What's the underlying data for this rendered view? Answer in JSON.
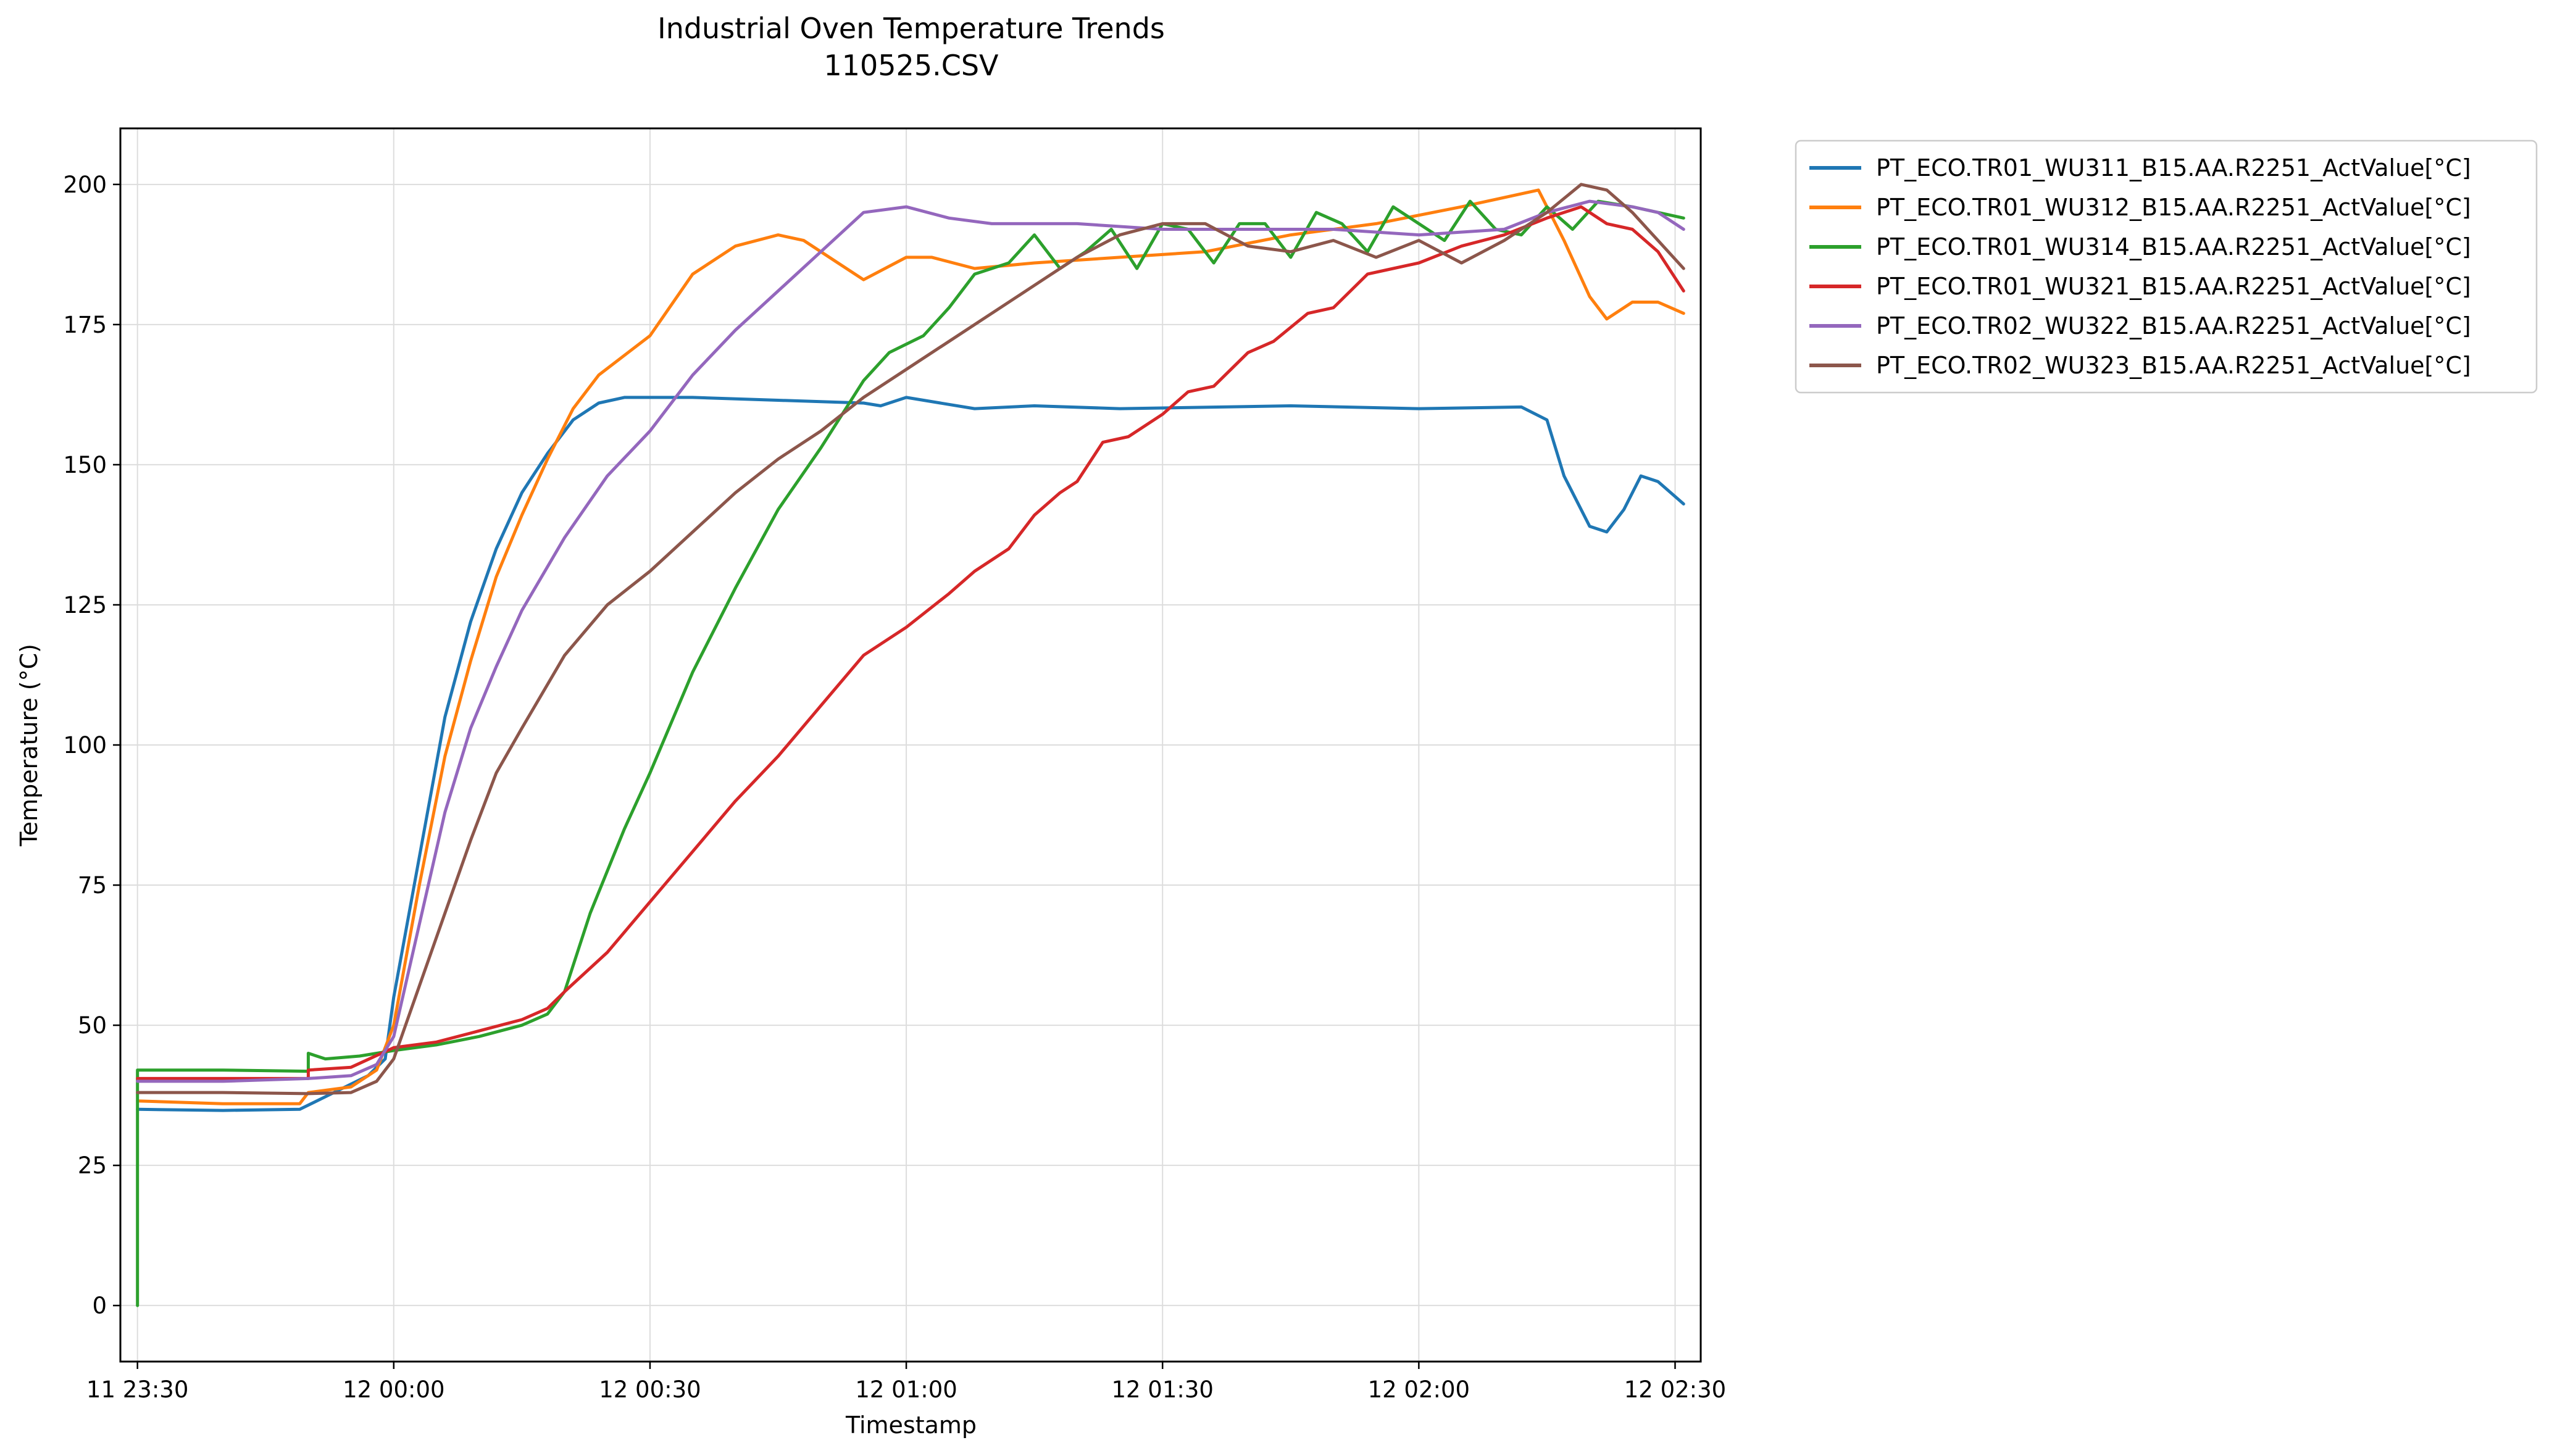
{
  "chart_data": {
    "type": "line",
    "title": "Industrial Oven Temperature Trends",
    "subtitle": "110525.CSV",
    "xlabel": "Timestamp",
    "ylabel": "Temperature (°C)",
    "xlim": [
      "11 23:28",
      "12 02:33"
    ],
    "ylim": [
      -10,
      210
    ],
    "grid": true,
    "legend_position": "outside-top-right",
    "yticks": [
      0,
      25,
      50,
      75,
      100,
      125,
      150,
      175,
      200
    ],
    "xticks": [
      {
        "t": "11 23:30",
        "label": "11 23:30"
      },
      {
        "t": "12 00:00",
        "label": "12 00:00"
      },
      {
        "t": "12 00:30",
        "label": "12 00:30"
      },
      {
        "t": "12 01:00",
        "label": "12 01:00"
      },
      {
        "t": "12 01:30",
        "label": "12 01:30"
      },
      {
        "t": "12 02:00",
        "label": "12 02:00"
      },
      {
        "t": "12 02:30",
        "label": "12 02:30"
      }
    ],
    "series": [
      {
        "name": "PT_ECO.TR01_WU311_B15.AA.R2251_ActValue[°C]",
        "color": "#1f77b4",
        "points": [
          [
            "11 23:30",
            35
          ],
          [
            "11 23:40",
            34.8
          ],
          [
            "11 23:49",
            35
          ],
          [
            "11 23:53",
            38
          ],
          [
            "11 23:57",
            41
          ],
          [
            "11 23:59",
            44
          ],
          [
            "12 00:00",
            55
          ],
          [
            "12 00:03",
            80
          ],
          [
            "12 00:06",
            105
          ],
          [
            "12 00:09",
            122
          ],
          [
            "12 00:12",
            135
          ],
          [
            "12 00:15",
            145
          ],
          [
            "12 00:18",
            152
          ],
          [
            "12 00:21",
            158
          ],
          [
            "12 00:24",
            161
          ],
          [
            "12 00:27",
            162
          ],
          [
            "12 00:35",
            162
          ],
          [
            "12 00:45",
            161.5
          ],
          [
            "12 00:55",
            161
          ],
          [
            "12 00:57",
            160.5
          ],
          [
            "12 01:00",
            162
          ],
          [
            "12 01:04",
            161
          ],
          [
            "12 01:08",
            160
          ],
          [
            "12 01:15",
            160.5
          ],
          [
            "12 01:25",
            160
          ],
          [
            "12 01:45",
            160.5
          ],
          [
            "12 02:00",
            160
          ],
          [
            "12 02:12",
            160.3
          ],
          [
            "12 02:15",
            158
          ],
          [
            "12 02:17",
            148
          ],
          [
            "12 02:20",
            139
          ],
          [
            "12 02:22",
            138
          ],
          [
            "12 02:24",
            142
          ],
          [
            "12 02:26",
            148
          ],
          [
            "12 02:28",
            147
          ],
          [
            "12 02:31",
            143
          ]
        ]
      },
      {
        "name": "PT_ECO.TR01_WU312_B15.AA.R2251_ActValue[°C]",
        "color": "#ff7f0e",
        "points": [
          [
            "11 23:30",
            36.5
          ],
          [
            "11 23:40",
            36
          ],
          [
            "11 23:49",
            36
          ],
          [
            "11 23:50",
            38
          ],
          [
            "11 23:55",
            39
          ],
          [
            "11 23:58",
            42
          ],
          [
            "12 00:00",
            50
          ],
          [
            "12 00:03",
            75
          ],
          [
            "12 00:06",
            98
          ],
          [
            "12 00:09",
            115
          ],
          [
            "12 00:12",
            130
          ],
          [
            "12 00:15",
            141
          ],
          [
            "12 00:18",
            151
          ],
          [
            "12 00:21",
            160
          ],
          [
            "12 00:24",
            166
          ],
          [
            "12 00:30",
            173
          ],
          [
            "12 00:35",
            184
          ],
          [
            "12 00:40",
            189
          ],
          [
            "12 00:45",
            191
          ],
          [
            "12 00:48",
            190
          ],
          [
            "12 00:52",
            186
          ],
          [
            "12 00:55",
            183
          ],
          [
            "12 01:00",
            187
          ],
          [
            "12 01:03",
            187
          ],
          [
            "12 01:08",
            185
          ],
          [
            "12 01:15",
            186
          ],
          [
            "12 01:25",
            187
          ],
          [
            "12 01:35",
            188
          ],
          [
            "12 01:45",
            191
          ],
          [
            "12 01:55",
            193
          ],
          [
            "12 02:05",
            196
          ],
          [
            "12 02:14",
            199
          ],
          [
            "12 02:17",
            190
          ],
          [
            "12 02:20",
            180
          ],
          [
            "12 02:22",
            176
          ],
          [
            "12 02:25",
            179
          ],
          [
            "12 02:28",
            179
          ],
          [
            "12 02:31",
            177
          ]
        ]
      },
      {
        "name": "PT_ECO.TR01_WU314_B15.AA.R2251_ActValue[°C]",
        "color": "#2ca02c",
        "points": [
          [
            "11 23:30",
            0
          ],
          [
            "11 23:30",
            42
          ],
          [
            "11 23:40",
            42
          ],
          [
            "11 23:50",
            41.8
          ],
          [
            "11 23:50",
            45
          ],
          [
            "11 23:52",
            44
          ],
          [
            "11 23:56",
            44.5
          ],
          [
            "12 00:00",
            45.5
          ],
          [
            "12 00:05",
            46.5
          ],
          [
            "12 00:10",
            48
          ],
          [
            "12 00:15",
            50
          ],
          [
            "12 00:18",
            52
          ],
          [
            "12 00:20",
            56
          ],
          [
            "12 00:23",
            70
          ],
          [
            "12 00:27",
            85
          ],
          [
            "12 00:30",
            95
          ],
          [
            "12 00:35",
            113
          ],
          [
            "12 00:40",
            128
          ],
          [
            "12 00:45",
            142
          ],
          [
            "12 00:50",
            153
          ],
          [
            "12 00:55",
            165
          ],
          [
            "12 00:58",
            170
          ],
          [
            "12 01:02",
            173
          ],
          [
            "12 01:05",
            178
          ],
          [
            "12 01:08",
            184
          ],
          [
            "12 01:12",
            186
          ],
          [
            "12 01:15",
            191
          ],
          [
            "12 01:18",
            185
          ],
          [
            "12 01:21",
            188
          ],
          [
            "12 01:24",
            192
          ],
          [
            "12 01:27",
            185
          ],
          [
            "12 01:30",
            193
          ],
          [
            "12 01:33",
            192
          ],
          [
            "12 01:36",
            186
          ],
          [
            "12 01:39",
            193
          ],
          [
            "12 01:42",
            193
          ],
          [
            "12 01:45",
            187
          ],
          [
            "12 01:48",
            195
          ],
          [
            "12 01:51",
            193
          ],
          [
            "12 01:54",
            188
          ],
          [
            "12 01:57",
            196
          ],
          [
            "12 02:00",
            193
          ],
          [
            "12 02:03",
            190
          ],
          [
            "12 02:06",
            197
          ],
          [
            "12 02:09",
            192
          ],
          [
            "12 02:12",
            191
          ],
          [
            "12 02:15",
            196
          ],
          [
            "12 02:18",
            192
          ],
          [
            "12 02:21",
            197
          ],
          [
            "12 02:25",
            196
          ],
          [
            "12 02:31",
            194
          ]
        ]
      },
      {
        "name": "PT_ECO.TR01_WU321_B15.AA.R2251_ActValue[°C]",
        "color": "#d62728",
        "points": [
          [
            "11 23:30",
            40.5
          ],
          [
            "11 23:40",
            40.5
          ],
          [
            "11 23:50",
            40.5
          ],
          [
            "11 23:50",
            42
          ],
          [
            "11 23:55",
            42.5
          ],
          [
            "12 00:00",
            46
          ],
          [
            "12 00:05",
            47
          ],
          [
            "12 00:10",
            49
          ],
          [
            "12 00:15",
            51
          ],
          [
            "12 00:18",
            53
          ],
          [
            "12 00:20",
            56
          ],
          [
            "12 00:25",
            63
          ],
          [
            "12 00:30",
            72
          ],
          [
            "12 00:35",
            81
          ],
          [
            "12 00:40",
            90
          ],
          [
            "12 00:45",
            98
          ],
          [
            "12 00:50",
            107
          ],
          [
            "12 00:55",
            116
          ],
          [
            "12 01:00",
            121
          ],
          [
            "12 01:05",
            127
          ],
          [
            "12 01:08",
            131
          ],
          [
            "12 01:12",
            135
          ],
          [
            "12 01:15",
            141
          ],
          [
            "12 01:18",
            145
          ],
          [
            "12 01:20",
            147
          ],
          [
            "12 01:23",
            154
          ],
          [
            "12 01:26",
            155
          ],
          [
            "12 01:30",
            159
          ],
          [
            "12 01:33",
            163
          ],
          [
            "12 01:36",
            164
          ],
          [
            "12 01:40",
            170
          ],
          [
            "12 01:43",
            172
          ],
          [
            "12 01:47",
            177
          ],
          [
            "12 01:50",
            178
          ],
          [
            "12 01:54",
            184
          ],
          [
            "12 01:57",
            185
          ],
          [
            "12 02:00",
            186
          ],
          [
            "12 02:05",
            189
          ],
          [
            "12 02:10",
            191
          ],
          [
            "12 02:15",
            194
          ],
          [
            "12 02:19",
            196
          ],
          [
            "12 02:22",
            193
          ],
          [
            "12 02:25",
            192
          ],
          [
            "12 02:28",
            188
          ],
          [
            "12 02:31",
            181
          ]
        ]
      },
      {
        "name": "PT_ECO.TR02_WU322_B15.AA.R2251_ActValue[°C]",
        "color": "#9467bd",
        "points": [
          [
            "11 23:30",
            40
          ],
          [
            "11 23:40",
            40
          ],
          [
            "11 23:50",
            40.5
          ],
          [
            "11 23:55",
            41
          ],
          [
            "11 23:58",
            43
          ],
          [
            "12 00:00",
            48
          ],
          [
            "12 00:03",
            68
          ],
          [
            "12 00:06",
            88
          ],
          [
            "12 00:09",
            103
          ],
          [
            "12 00:12",
            114
          ],
          [
            "12 00:15",
            124
          ],
          [
            "12 00:20",
            137
          ],
          [
            "12 00:25",
            148
          ],
          [
            "12 00:30",
            156
          ],
          [
            "12 00:35",
            166
          ],
          [
            "12 00:40",
            174
          ],
          [
            "12 00:45",
            181
          ],
          [
            "12 00:50",
            188
          ],
          [
            "12 00:55",
            195
          ],
          [
            "12 01:00",
            196
          ],
          [
            "12 01:05",
            194
          ],
          [
            "12 01:10",
            193
          ],
          [
            "12 01:20",
            193
          ],
          [
            "12 01:30",
            192
          ],
          [
            "12 01:40",
            192
          ],
          [
            "12 01:50",
            192
          ],
          [
            "12 02:00",
            191
          ],
          [
            "12 02:10",
            192
          ],
          [
            "12 02:15",
            195
          ],
          [
            "12 02:20",
            197
          ],
          [
            "12 02:25",
            196
          ],
          [
            "12 02:28",
            195
          ],
          [
            "12 02:31",
            192
          ]
        ]
      },
      {
        "name": "PT_ECO.TR02_WU323_B15.AA.R2251_ActValue[°C]",
        "color": "#8c564b",
        "points": [
          [
            "11 23:30",
            38
          ],
          [
            "11 23:40",
            38
          ],
          [
            "11 23:50",
            37.8
          ],
          [
            "11 23:55",
            38
          ],
          [
            "11 23:58",
            40
          ],
          [
            "12 00:00",
            44
          ],
          [
            "12 00:03",
            57
          ],
          [
            "12 00:06",
            70
          ],
          [
            "12 00:09",
            83
          ],
          [
            "12 00:12",
            95
          ],
          [
            "12 00:15",
            103
          ],
          [
            "12 00:20",
            116
          ],
          [
            "12 00:25",
            125
          ],
          [
            "12 00:30",
            131
          ],
          [
            "12 00:35",
            138
          ],
          [
            "12 00:40",
            145
          ],
          [
            "12 00:45",
            151
          ],
          [
            "12 00:50",
            156
          ],
          [
            "12 00:55",
            162
          ],
          [
            "12 01:00",
            167
          ],
          [
            "12 01:05",
            172
          ],
          [
            "12 01:10",
            177
          ],
          [
            "12 01:15",
            182
          ],
          [
            "12 01:20",
            187
          ],
          [
            "12 01:25",
            191
          ],
          [
            "12 01:30",
            193
          ],
          [
            "12 01:35",
            193
          ],
          [
            "12 01:40",
            189
          ],
          [
            "12 01:45",
            188
          ],
          [
            "12 01:50",
            190
          ],
          [
            "12 01:55",
            187
          ],
          [
            "12 02:00",
            190
          ],
          [
            "12 02:05",
            186
          ],
          [
            "12 02:10",
            190
          ],
          [
            "12 02:15",
            195
          ],
          [
            "12 02:19",
            200
          ],
          [
            "12 02:22",
            199
          ],
          [
            "12 02:25",
            195
          ],
          [
            "12 02:28",
            190
          ],
          [
            "12 02:31",
            185
          ]
        ]
      }
    ]
  }
}
